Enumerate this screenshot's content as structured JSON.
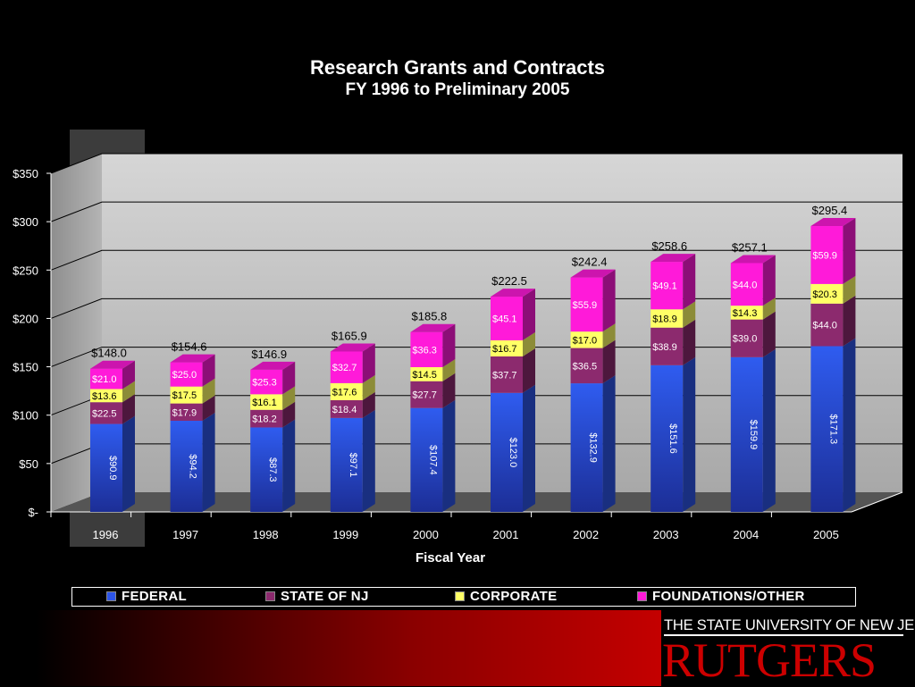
{
  "chart_data": {
    "type": "bar",
    "stacked": true,
    "title": "Research Grants and Contracts",
    "subtitle": "FY 1996 to Preliminary 2005",
    "xlabel": "Fiscal Year",
    "ylabel": "",
    "ylim": [
      0,
      350
    ],
    "y_ticks": [
      "$-",
      "$50",
      "$100",
      "$150",
      "$200",
      "$250",
      "$300",
      "$350"
    ],
    "categories": [
      "1996",
      "1997",
      "1998",
      "1999",
      "2000",
      "2001",
      "2002",
      "2003",
      "2004",
      "2005"
    ],
    "series": [
      {
        "name": "FEDERAL",
        "color": "#2d55e8",
        "values": [
          90.9,
          94.2,
          87.3,
          97.1,
          107.4,
          123.0,
          132.9,
          151.6,
          159.9,
          171.3
        ],
        "labels": [
          "$90.9",
          "$94.2",
          "$87.3",
          "$97.1",
          "$107.4",
          "$123.0",
          "$132.9",
          "$151.6",
          "$159.9",
          "$171.3"
        ]
      },
      {
        "name": "STATE OF NJ",
        "color": "#8c2a6e",
        "values": [
          22.5,
          17.9,
          18.2,
          18.4,
          27.7,
          37.7,
          36.5,
          38.9,
          39.0,
          44.0
        ],
        "labels": [
          "$22.5",
          "$17.9",
          "$18.2",
          "$18.4",
          "$27.7",
          "$37.7",
          "$36.5",
          "$38.9",
          "$39.0",
          "$44.0"
        ]
      },
      {
        "name": "CORPORATE",
        "color": "#ffff66",
        "values": [
          13.6,
          17.5,
          16.1,
          17.6,
          14.5,
          16.7,
          17.0,
          18.9,
          14.3,
          20.3
        ],
        "labels": [
          "$13.6",
          "$17.5",
          "$16.1",
          "$17.6",
          "$14.5",
          "$16.7",
          "$17.0",
          "$18.9",
          "$14.3",
          "$20.3"
        ]
      },
      {
        "name": "FOUNDATIONS/OTHER",
        "color": "#ff1ad9",
        "values": [
          21.0,
          25.0,
          25.3,
          32.7,
          36.3,
          45.1,
          55.9,
          49.1,
          44.0,
          59.9
        ],
        "labels": [
          "$21.0",
          "$25.0",
          "$25.3",
          "$32.7",
          "$36.3",
          "$45.1",
          "$55.9",
          "$49.1",
          "$44.0",
          "$59.9"
        ]
      }
    ],
    "totals": [
      "$148.0",
      "$154.6",
      "$146.9",
      "$165.9",
      "$185.8",
      "$222.5",
      "$242.4",
      "$258.6",
      "$257.1",
      "$295.4"
    ],
    "highlighted_category": "1996",
    "grid": true,
    "legend_position": "bottom"
  },
  "branding": {
    "university_line": "THE STATE UNIVERSITY OF NEW JERSEY",
    "wordmark": "RUTGERS"
  }
}
